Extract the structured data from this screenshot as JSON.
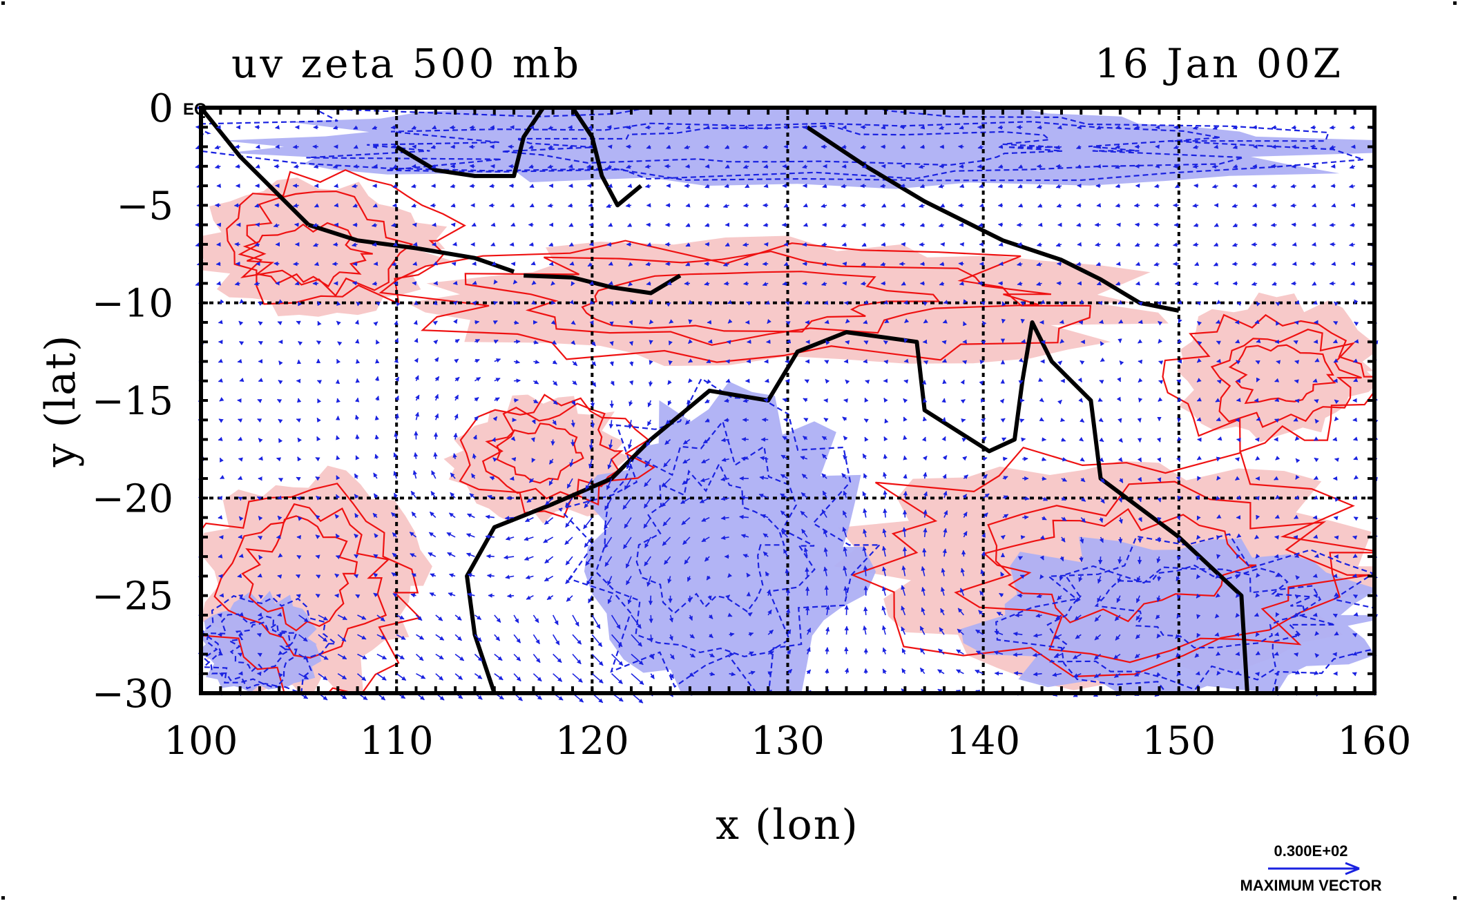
{
  "chart_data": {
    "type": "map",
    "title": "uv zeta 500 mb",
    "time_label": "16 Jan 00Z",
    "xlabel": "x (lon)",
    "ylabel": "y (lat)",
    "xlim": [
      100,
      160
    ],
    "ylim": [
      -30,
      0
    ],
    "x_ticks": [
      100,
      110,
      120,
      130,
      140,
      150,
      160
    ],
    "y_ticks": [
      0,
      -5,
      -10,
      -15,
      -20,
      -25,
      -30
    ],
    "x_tick_labels": [
      "100",
      "110",
      "120",
      "130",
      "140",
      "150",
      "160"
    ],
    "y_tick_labels": [
      "0",
      "−5",
      "−10",
      "−15",
      "−20",
      "−25",
      "−30"
    ],
    "gridlines": {
      "lon": [
        110,
        120,
        130,
        140,
        150
      ],
      "lat": [
        -10,
        -20
      ]
    },
    "corner_label": "EQ",
    "legend": {
      "vector_magnitude": "0.300E+02",
      "vector_label": "MAXIMUM VECTOR"
    },
    "colors": {
      "positive_vorticity_fill": "#f7c6c6",
      "positive_vorticity_contour": "#ee1111",
      "negative_vorticity_fill": "#aeb0f4",
      "wind_vectors": "#1a22e0",
      "coastline": "#000000"
    },
    "vorticity_regions": [
      {
        "sign": "positive",
        "lon": [
          100,
          112
        ],
        "lat": [
          -10.5,
          -4
        ]
      },
      {
        "sign": "positive",
        "lon": [
          112,
          148
        ],
        "lat": [
          -13,
          -7
        ]
      },
      {
        "sign": "positive",
        "lon": [
          113,
          122
        ],
        "lat": [
          -21,
          -15
        ]
      },
      {
        "sign": "positive",
        "lon": [
          100,
          111
        ],
        "lat": [
          -30,
          -19
        ]
      },
      {
        "sign": "positive",
        "lon": [
          134,
          160
        ],
        "lat": [
          -29,
          -18
        ]
      },
      {
        "sign": "positive",
        "lon": [
          150,
          160
        ],
        "lat": [
          -17,
          -10
        ]
      },
      {
        "sign": "negative",
        "lon": [
          101,
          160
        ],
        "lat": [
          -4,
          0
        ]
      },
      {
        "sign": "negative",
        "lon": [
          120,
          134
        ],
        "lat": [
          -30,
          -15
        ]
      },
      {
        "sign": "negative",
        "lon": [
          100,
          106
        ],
        "lat": [
          -30,
          -25
        ]
      },
      {
        "sign": "negative",
        "lon": [
          140,
          160
        ],
        "lat": [
          -30,
          -22
        ]
      }
    ],
    "coastlines": [
      {
        "name": "sumatra",
        "points": [
          [
            100,
            0
          ],
          [
            102,
            -2.5
          ],
          [
            104,
            -4.5
          ],
          [
            105.5,
            -6
          ]
        ]
      },
      {
        "name": "java",
        "points": [
          [
            105.5,
            -6
          ],
          [
            108,
            -6.8
          ],
          [
            111,
            -7.2
          ],
          [
            114,
            -7.7
          ],
          [
            116,
            -8.4
          ]
        ]
      },
      {
        "name": "borneo",
        "points": [
          [
            110,
            -2
          ],
          [
            112,
            -3.2
          ],
          [
            114,
            -3.5
          ],
          [
            116,
            -3.5
          ],
          [
            116.5,
            -1.5
          ],
          [
            117.5,
            0
          ]
        ]
      },
      {
        "name": "sulawesi",
        "points": [
          [
            119,
            0
          ],
          [
            120,
            -1.5
          ],
          [
            120.5,
            -3.5
          ],
          [
            121.3,
            -5
          ],
          [
            122.5,
            -4
          ]
        ]
      },
      {
        "name": "lesser_sunda",
        "points": [
          [
            116.5,
            -8.6
          ],
          [
            119,
            -8.7
          ],
          [
            121,
            -9.2
          ],
          [
            123,
            -9.5
          ],
          [
            124.5,
            -8.6
          ]
        ]
      },
      {
        "name": "new_guinea",
        "points": [
          [
            131,
            -1
          ],
          [
            134,
            -3
          ],
          [
            137,
            -4.8
          ],
          [
            141,
            -6.8
          ],
          [
            144,
            -7.8
          ],
          [
            146,
            -8.8
          ],
          [
            148,
            -10
          ],
          [
            150,
            -10.4
          ]
        ]
      },
      {
        "name": "australia",
        "points": [
          [
            160,
            -30
          ],
          [
            153.5,
            -30
          ],
          [
            153.2,
            -25
          ],
          [
            150,
            -22
          ],
          [
            146,
            -19
          ],
          [
            145.5,
            -15
          ],
          [
            143.5,
            -13
          ],
          [
            142.5,
            -11
          ],
          [
            142,
            -14
          ],
          [
            141.6,
            -17
          ],
          [
            140.3,
            -17.6
          ],
          [
            137,
            -15.5
          ],
          [
            136.6,
            -12
          ],
          [
            133,
            -11.5
          ],
          [
            130.5,
            -12.5
          ],
          [
            129,
            -15
          ],
          [
            126,
            -14.5
          ],
          [
            123,
            -17
          ],
          [
            121,
            -19
          ],
          [
            118,
            -20.3
          ],
          [
            115,
            -21.5
          ],
          [
            113.6,
            -24
          ],
          [
            114,
            -27
          ],
          [
            115,
            -30
          ]
        ]
      }
    ],
    "wind_field": {
      "grid_spacing_deg": 1,
      "max_vector_magnitude": 30,
      "circulations": [
        {
          "lon": 116,
          "lat": -18,
          "sense": "cyclonic"
        },
        {
          "lon": 127,
          "lat": -24,
          "sense": "anticyclonic"
        },
        {
          "lon": 142,
          "lat": -24,
          "sense": "cyclonic"
        }
      ],
      "background_flow": "easterly north of 10S; strong westerly jet 105-122E south of 26S"
    }
  }
}
